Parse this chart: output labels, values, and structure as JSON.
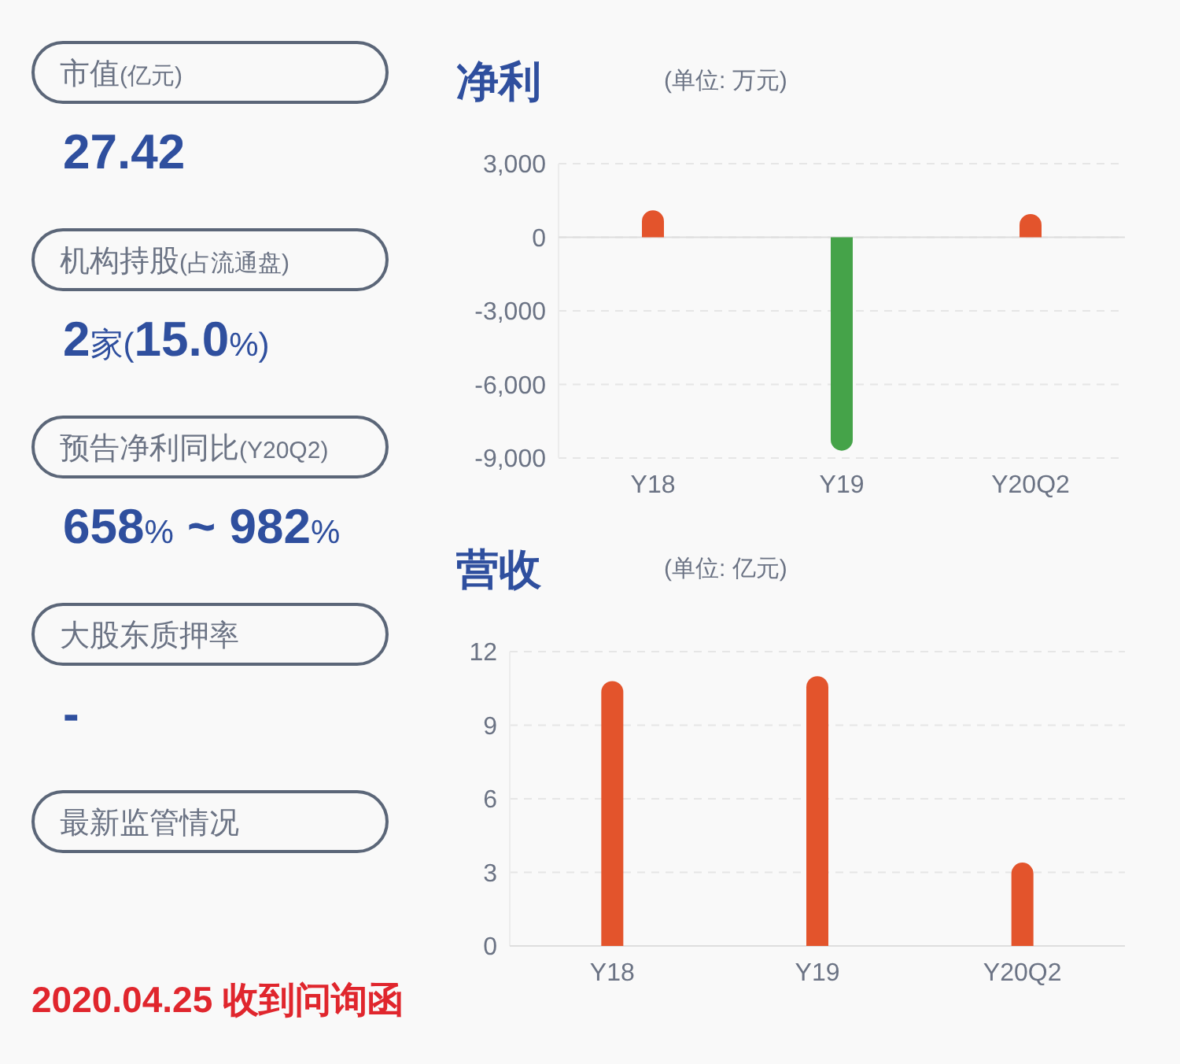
{
  "chart_data": [
    {
      "type": "other",
      "annotations": [
        "市值(亿元)",
        "27.42",
        "机构持股(占流通盘)",
        "2家(15.0%)",
        "预告净利同比(Y20Q2)",
        "658% ~ 982%",
        "大股东质押率",
        "-",
        "最新监管情况",
        "2020.04.25 收到问询函"
      ]
    },
    {
      "type": "bar",
      "title": "净利",
      "subtitle": "(单位: 万元)",
      "categories": [
        "Y18",
        "Y19",
        "Y20Q2"
      ],
      "values": [
        1100,
        -8700,
        950
      ],
      "colors": [
        "#e3542c",
        "#45a349",
        "#e3542c"
      ],
      "ylim": [
        -9000,
        3000
      ],
      "yticks": [
        {
          "value": -9000,
          "label": "-9,000"
        },
        {
          "value": -6000,
          "label": "-6,000"
        },
        {
          "value": -3000,
          "label": "-3,000"
        },
        0,
        {
          "value": 3000,
          "label": "3,000"
        }
      ],
      "grid": "y"
    },
    {
      "type": "bar",
      "title": "营收",
      "subtitle": "(单位: 亿元)",
      "categories": [
        "Y18",
        "Y19",
        "Y20Q2"
      ],
      "values": [
        10.8,
        11.0,
        3.4
      ],
      "colors": [
        "#e3542c",
        "#e3542c",
        "#e3542c"
      ],
      "ylim": [
        0,
        12
      ],
      "yticks": [
        0,
        3,
        6,
        9,
        12
      ],
      "grid": "y"
    }
  ]
}
